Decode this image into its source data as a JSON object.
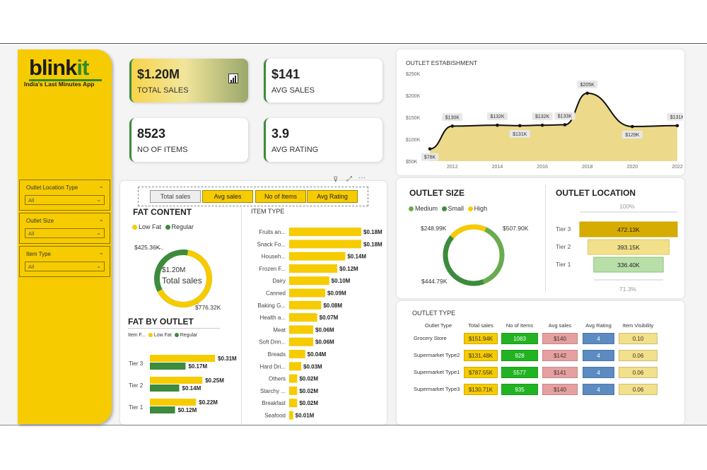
{
  "brand": {
    "logo_main": "blink",
    "logo_accent": "it",
    "tagline": "India's Last Minutes App"
  },
  "filters": [
    {
      "label": "Outlet Location Type",
      "value": "All"
    },
    {
      "label": "Outlet Size",
      "value": "All"
    },
    {
      "label": "Item Type",
      "value": "All"
    }
  ],
  "kpis": {
    "total_sales": {
      "value": "$1.20M",
      "label": "TOTAL SALES"
    },
    "avg_sales": {
      "value": "$141",
      "label": "AVG SALES"
    },
    "no_items": {
      "value": "8523",
      "label": "NO OF ITEMS"
    },
    "avg_rating": {
      "value": "3.9",
      "label": "AVG RATING"
    }
  },
  "metric_buttons": [
    "Total sales",
    "Avg sales",
    "No of Items",
    "Avg Rating"
  ],
  "colors": {
    "yellow": "#f6cb00",
    "green": "#3d8b3d",
    "green_light": "#6aab4f",
    "red": "#e6a0a0",
    "blue": "#5b8bc0",
    "pale": "#f2e08a"
  },
  "fat_content": {
    "title": "FAT CONTENT",
    "legend": [
      "Low Fat",
      "Regular"
    ],
    "center_value": "$1.20M",
    "center_label": "Total sales",
    "label_low": "$776.32K",
    "label_reg": "$425.36K"
  },
  "item_type": {
    "title": "ITEM TYPE",
    "rows": [
      {
        "name": "Fruits an...",
        "value": 0.18,
        "label": "$0.18M"
      },
      {
        "name": "Snack Fo...",
        "value": 0.18,
        "label": "$0.18M"
      },
      {
        "name": "Househ...",
        "value": 0.14,
        "label": "$0.14M"
      },
      {
        "name": "Frozen F...",
        "value": 0.12,
        "label": "$0.12M"
      },
      {
        "name": "Dairy",
        "value": 0.1,
        "label": "$0.10M"
      },
      {
        "name": "Canned",
        "value": 0.09,
        "label": "$0.09M"
      },
      {
        "name": "Baking G...",
        "value": 0.08,
        "label": "$0.08M"
      },
      {
        "name": "Health a...",
        "value": 0.07,
        "label": "$0.07M"
      },
      {
        "name": "Meat",
        "value": 0.06,
        "label": "$0.06M"
      },
      {
        "name": "Soft Drin...",
        "value": 0.06,
        "label": "$0.06M"
      },
      {
        "name": "Breads",
        "value": 0.04,
        "label": "$0.04M"
      },
      {
        "name": "Hard Dri...",
        "value": 0.03,
        "label": "$0.03M"
      },
      {
        "name": "Others",
        "value": 0.02,
        "label": "$0.02M"
      },
      {
        "name": "Starchy ...",
        "value": 0.02,
        "label": "$0.02M"
      },
      {
        "name": "Breakfast",
        "value": 0.02,
        "label": "$0.02M"
      },
      {
        "name": "Seafood",
        "value": 0.01,
        "label": "$0.01M"
      }
    ]
  },
  "fat_by_outlet": {
    "title": "FAT BY OUTLET",
    "legend_title": "Item F...",
    "legend": [
      "Low Fat",
      "Regular"
    ],
    "rows": [
      {
        "tier": "Tier 3",
        "low": 0.31,
        "low_label": "$0.31M",
        "reg": 0.17,
        "reg_label": "$0.17M"
      },
      {
        "tier": "Tier 2",
        "low": 0.25,
        "low_label": "$0.25M",
        "reg": 0.14,
        "reg_label": "$0.14M"
      },
      {
        "tier": "Tier 1",
        "low": 0.22,
        "low_label": "$0.22M",
        "reg": 0.12,
        "reg_label": "$0.12M"
      }
    ]
  },
  "outlet_establishment": {
    "title": "OUTLET ESTABISHMENT",
    "y_ticks": [
      "$250K",
      "$200K",
      "$150K",
      "$100K",
      "$50K"
    ],
    "x_ticks": [
      "2012",
      "2014",
      "2016",
      "2018",
      "2020",
      "2022"
    ],
    "points": [
      {
        "x": 2011,
        "y": 78,
        "label": "$78K"
      },
      {
        "x": 2012,
        "y": 130,
        "label": "$130K"
      },
      {
        "x": 2014,
        "y": 132,
        "label": "$132K"
      },
      {
        "x": 2015,
        "y": 131,
        "label": "$131K"
      },
      {
        "x": 2016,
        "y": 132,
        "label": "$132K"
      },
      {
        "x": 2017,
        "y": 133,
        "label": "$133K"
      },
      {
        "x": 2018,
        "y": 205,
        "label": "$205K"
      },
      {
        "x": 2020,
        "y": 129,
        "label": "$129K"
      },
      {
        "x": 2022,
        "y": 131,
        "label": "$131K"
      }
    ]
  },
  "outlet_size": {
    "title": "OUTLET SIZE",
    "legend": [
      "Medium",
      "Small",
      "High"
    ],
    "label_medium": "$507.90K",
    "label_small": "$444.79K",
    "label_high": "$248.99K"
  },
  "outlet_location": {
    "title": "OUTLET LOCATION",
    "top_pct": "100%",
    "bottom_pct": "71.3%",
    "rows": [
      {
        "tier": "Tier 3",
        "label": "472.13K",
        "value": 472.13
      },
      {
        "tier": "Tier 2",
        "label": "393.15K",
        "value": 393.15
      },
      {
        "tier": "Tier 1",
        "label": "336.40K",
        "value": 336.4
      }
    ]
  },
  "outlet_type": {
    "title": "OUTLET TYPE",
    "headers": [
      "Outlet Type",
      "Total sales",
      "No of Items",
      "Avg sales",
      "Avg Rating",
      "Item Visibility"
    ],
    "rows": [
      {
        "type": "Grocery Store",
        "sales": "$151.94K",
        "items": "1083",
        "avg": "$140",
        "rating": "4",
        "vis": "0.10"
      },
      {
        "type": "Supermarket Type2",
        "sales": "$131.48K",
        "items": "928",
        "avg": "$142",
        "rating": "4",
        "vis": "0.06"
      },
      {
        "type": "Supermarket Type1",
        "sales": "$787.55K",
        "items": "5577",
        "avg": "$141",
        "rating": "4",
        "vis": "0.06"
      },
      {
        "type": "Supermarket Type3",
        "sales": "$130.71K",
        "items": "935",
        "avg": "$140",
        "rating": "4",
        "vis": "0.06"
      }
    ]
  }
}
